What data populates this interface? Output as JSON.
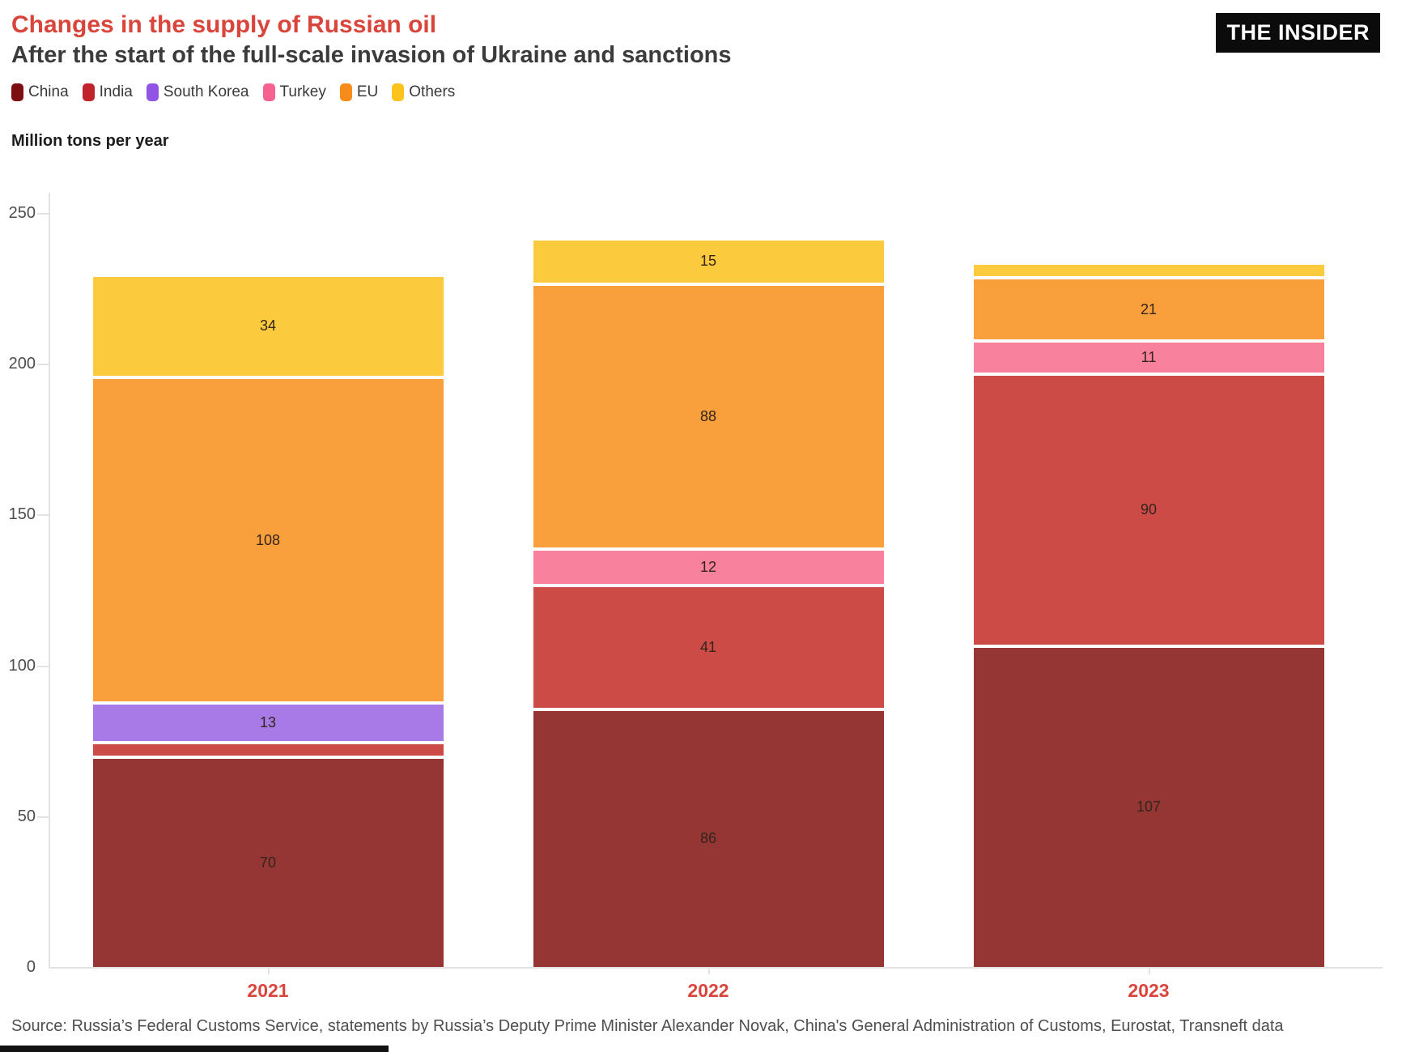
{
  "header": {
    "title": "Changes in the supply of Russian oil",
    "subtitle": "After the start of the full-scale invasion of Ukraine and sanctions",
    "logo": "THE INSIDER"
  },
  "colors": {
    "accent_red": "#d9453a",
    "axis_line": "#e3e3e3",
    "tick_label": "#4d4d4d",
    "value_label": "#33241c"
  },
  "chart_data": {
    "type": "bar",
    "stacked": true,
    "title": "Changes in the supply of Russian oil",
    "subtitle": "After the start of the full-scale invasion of Ukraine and sanctions",
    "ylabel": "Million tons per year",
    "xlabel": "",
    "categories": [
      "2021",
      "2022",
      "2023"
    ],
    "series": [
      {
        "name": "China",
        "legend_color": "#7c0e11",
        "bar_color": "#953634",
        "values": [
          70,
          86,
          107
        ],
        "labels": [
          "70",
          "86",
          "107"
        ]
      },
      {
        "name": "India",
        "legend_color": "#c0232b",
        "bar_color": "#cc4b46",
        "values": [
          5,
          41,
          90
        ],
        "labels": [
          null,
          "41",
          "90"
        ]
      },
      {
        "name": "South Korea",
        "legend_color": "#9254e4",
        "bar_color": "#a87ae8",
        "values": [
          13,
          0,
          0
        ],
        "labels": [
          "13",
          null,
          null
        ]
      },
      {
        "name": "Turkey",
        "legend_color": "#f7618f",
        "bar_color": "#f8819e",
        "values": [
          0,
          12,
          11
        ],
        "labels": [
          null,
          "12",
          "11"
        ]
      },
      {
        "name": "EU",
        "legend_color": "#f78c1c",
        "bar_color": "#f99f3b",
        "values": [
          108,
          88,
          21
        ],
        "labels": [
          "108",
          "88",
          "21"
        ]
      },
      {
        "name": "Others",
        "legend_color": "#fcc31d",
        "bar_color": "#fcca3d",
        "values": [
          34,
          15,
          5
        ],
        "labels": [
          "34",
          "15",
          null
        ]
      }
    ],
    "totals": [
      230,
      242,
      234
    ],
    "yticks": [
      0,
      50,
      100,
      150,
      200,
      250
    ],
    "ylim": [
      0,
      250
    ],
    "grid": false,
    "legend_position": "top-left"
  },
  "footer": {
    "source": "Source: Russia’s Federal Customs Service, statements by Russia’s Deputy Prime Minister Alexander Novak, China's General Administration of Customs, Eurostat, Transneft data"
  }
}
